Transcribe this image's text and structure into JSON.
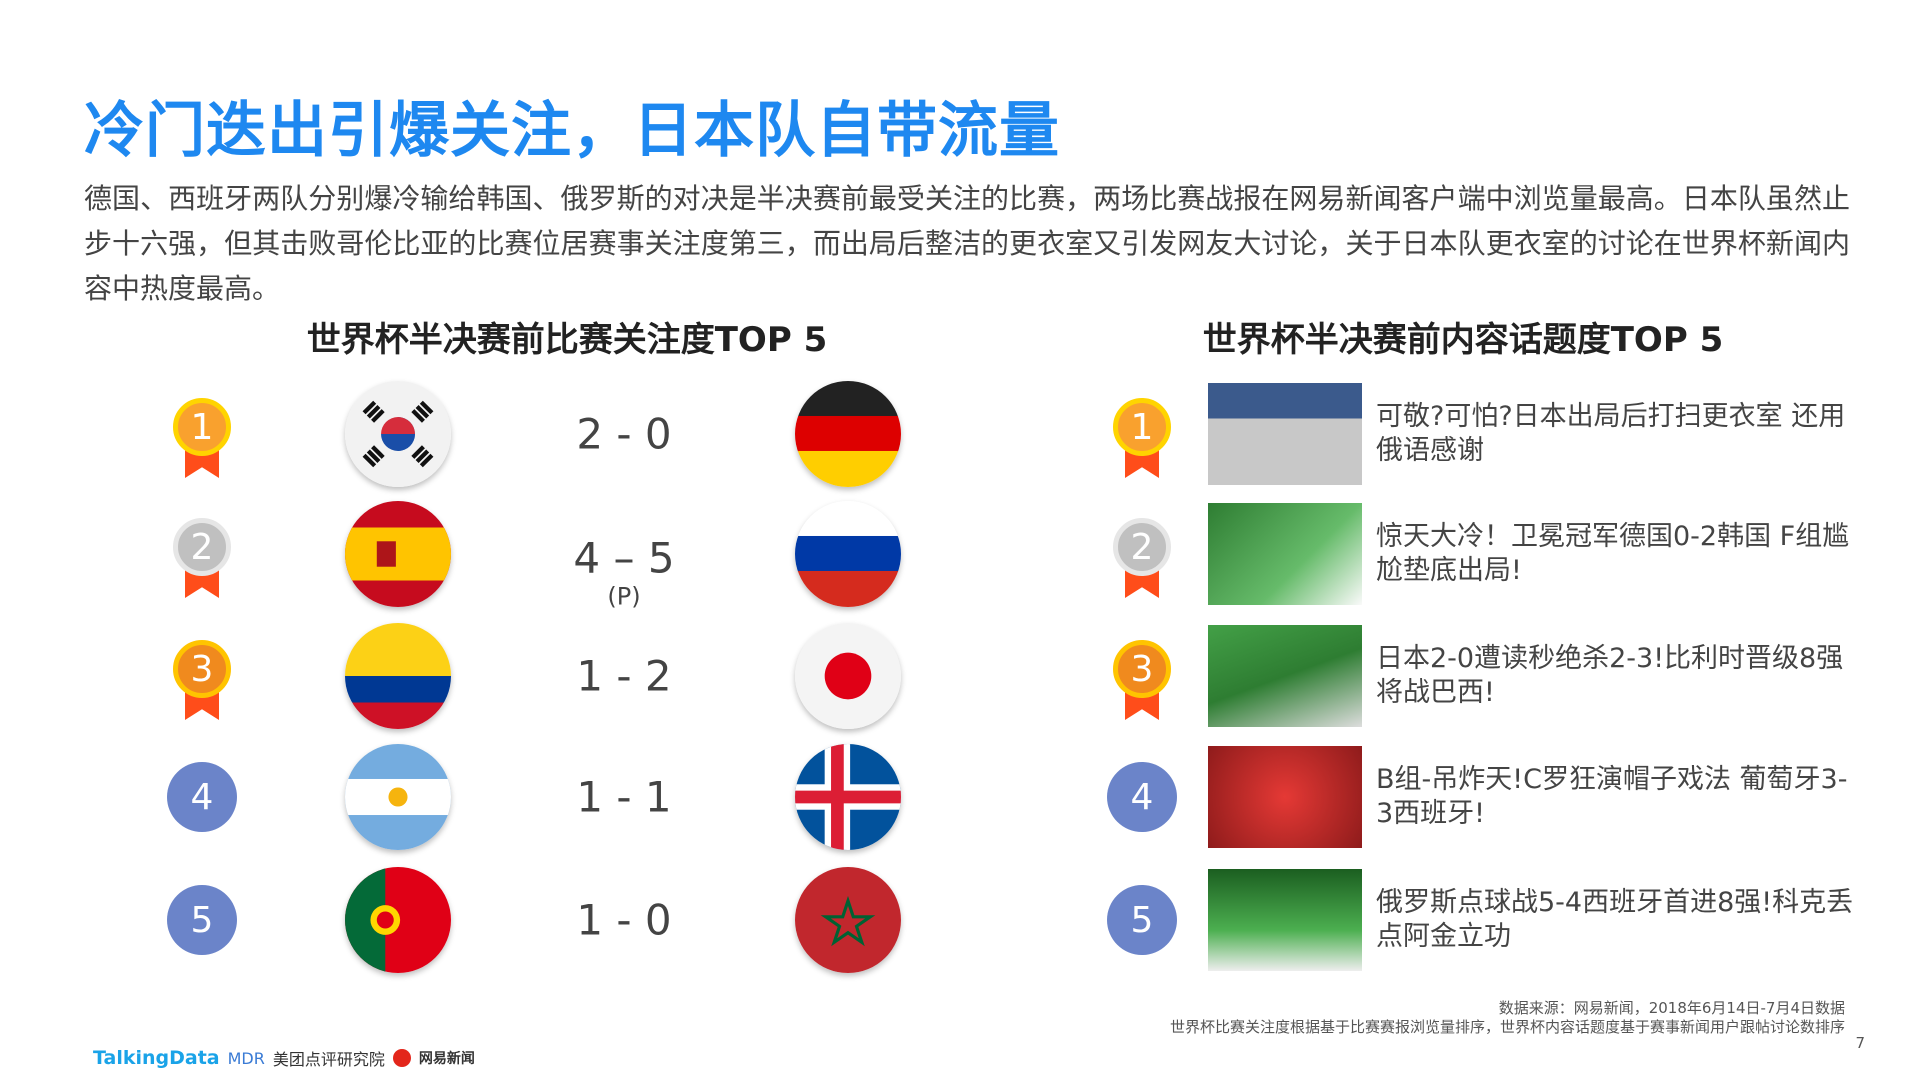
{
  "title": "冷门迭出引爆关注，日本队自带流量",
  "paragraph": "德国、西班牙两队分别爆冷输给韩国、俄罗斯的对决是半决赛前最受关注的比赛，两场比赛战报在网易新闻客户端中浏览量最高。日本队虽然止步十六强，但其击败哥伦比亚的比赛位居赛事关注度第三，而出局后整洁的更衣室又引发网友大讨论，关于日本队更衣室的讨论在世界杯新闻内容中热度最高。",
  "left": {
    "title": "世界杯半决赛前比赛关注度TOP 5",
    "matches": [
      {
        "rank": "1",
        "home": "korea",
        "score": "2 - 0",
        "note": "",
        "away": "germany"
      },
      {
        "rank": "2",
        "home": "spain",
        "score": "4 – 5",
        "note": "(P)",
        "away": "russia"
      },
      {
        "rank": "3",
        "home": "colombia",
        "score": "1 - 2",
        "note": "",
        "away": "japan"
      },
      {
        "rank": "4",
        "home": "argentina",
        "score": "1 - 1",
        "note": "",
        "away": "iceland"
      },
      {
        "rank": "5",
        "home": "portugal",
        "score": "1 - 0",
        "note": "",
        "away": "morocco"
      }
    ]
  },
  "right": {
    "title": "世界杯半决赛前内容话题度TOP 5",
    "items": [
      {
        "rank": "1",
        "text": "可敬?可怕?日本出局后打扫更衣室 还用俄语感谢"
      },
      {
        "rank": "2",
        "text": "惊天大冷！卫冕冠军德国0-2韩国 F组尴尬垫底出局!"
      },
      {
        "rank": "3",
        "text": "日本2-0遭读秒绝杀2-3!比利时晋级8强将战巴西!"
      },
      {
        "rank": "4",
        "text": "B组-吊炸天!C罗狂演帽子戏法 葡萄牙3-3西班牙!"
      },
      {
        "rank": "5",
        "text": "俄罗斯点球战5-4西班牙首进8强!科克丢点阿金立功"
      }
    ]
  },
  "source": {
    "line1": "数据来源：网易新闻，2018年6月14日-7月4日数据",
    "line2": "世界杯比赛关注度根据基于比赛赛报浏览量排序，世界杯内容话题度基于赛事新闻用户跟帖讨论数排序"
  },
  "page_number": "7",
  "logos": {
    "talkingdata": "TalkingData",
    "mdr": "MDR",
    "meituan": "美团点评研究院",
    "netease": "网易新闻"
  },
  "colors": {
    "title": "#1e88f0",
    "gold": "#f9a12e",
    "silver": "#c0c0c0",
    "bronze": "#f08a1e",
    "plain": "#6b84c9",
    "ribbon": "#ff4d1a"
  }
}
